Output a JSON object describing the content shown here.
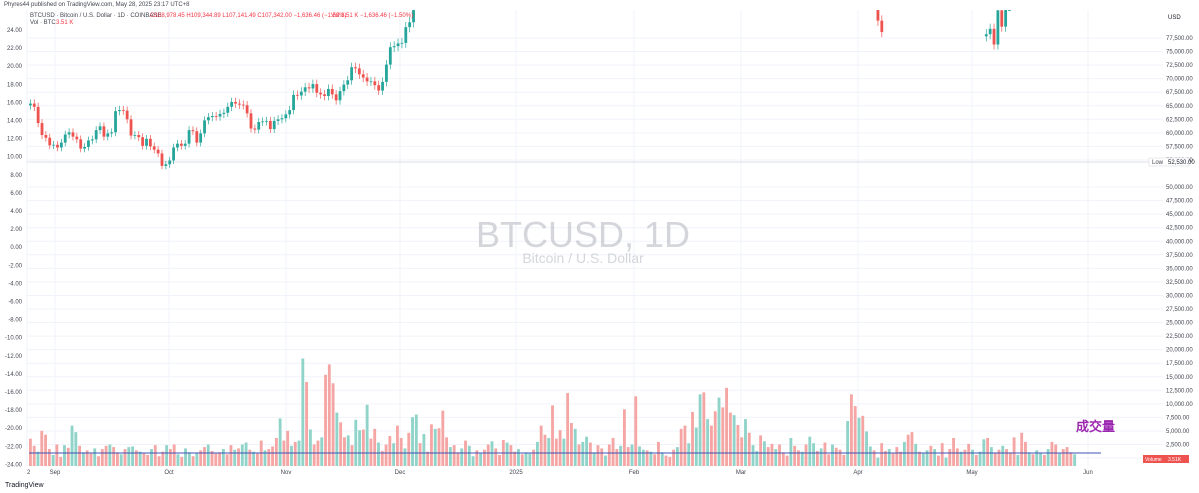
{
  "header": {
    "published": "Phyres44 published on TradingView.com, May 28, 2025 23:17 UTC+8",
    "symbol_line": "BTCUSD · Bitcoin / U.S. Dollar · 1D · COINBASE",
    "ohlc": "O108,978.45 H109,344.89 L107,141.49 C107,342.00 −1,636.46 (−1.50%)",
    "ohlc2": "Vol 3.51 K −1,636.46 (−1.50%)",
    "vol_label": "Vol · BTC",
    "vol_value": "3.51 K"
  },
  "watermark": {
    "symbol": "BTCUSD, 1D",
    "name": "Bitcoin / U.S. Dollar"
  },
  "annotation": "成交量",
  "right_axis": {
    "currency": "USD",
    "low_label": "Low",
    "low_value": "52,530.00",
    "volume_label": "Volume",
    "volume_value": "3.51K",
    "ticks": [
      "77,500.00",
      "75,000.00",
      "72,500.00",
      "70,000.00",
      "67,500.00",
      "65,000.00",
      "62,500.00",
      "60,000.00",
      "57,500.00",
      "55,000.00",
      "50,000.00",
      "47,500.00",
      "45,000.00",
      "42,500.00",
      "40,000.00",
      "37,500.00",
      "35,000.00",
      "32,500.00",
      "30,000.00",
      "27,500.00",
      "25,000.00",
      "22,500.00",
      "20,000.00",
      "17,500.00",
      "15,000.00",
      "12,500.00",
      "10,000.00",
      "7,500.00",
      "5,000.00",
      "2,500.00",
      "0.00"
    ]
  },
  "left_axis": {
    "ticks": [
      "24.00",
      "22.00",
      "20.00",
      "18.00",
      "16.00",
      "14.00",
      "12.00",
      "10.00",
      "8.00",
      "6.00",
      "4.00",
      "2.00",
      "0.00",
      "-2.00",
      "-4.00",
      "-6.00",
      "-8.00",
      "-10.00",
      "-12.00",
      "-14.00",
      "-16.00",
      "-18.00",
      "-20.00",
      "-22.00",
      "-24.00"
    ]
  },
  "x_axis": {
    "labels": [
      "2",
      "Sep",
      "Oct",
      "Nov",
      "Dec",
      "2025",
      "Feb",
      "Mar",
      "Apr",
      "May",
      "Jun"
    ]
  },
  "colors": {
    "up": "#26a69a",
    "down": "#ef5350",
    "up_vol": "#8fd3c9",
    "down_vol": "#f5a5a3",
    "ma_line": "#3f51b5",
    "annotation": "#9c27b0"
  },
  "footer": {
    "brand": "TradingView"
  },
  "chart_data": {
    "type": "candlestick",
    "series": [
      {
        "name": "BTCUSD",
        "note": "Daily candles Aug 2024 – early Nov 2024 and partial Mar/Apr 2025 (rest above visible range)",
        "segments": [
          {
            "from": "2024-08-02",
            "to": "2024-11-09",
            "close": [
              65400,
              64800,
              61800,
              59600,
              59100,
              57700,
              57800,
              57300,
              58200,
              59700,
              60100,
              59300,
              58800,
              57100,
              57400,
              58600,
              58800,
              60500,
              61200,
              59300,
              59900,
              60100,
              64000,
              64200,
              64100,
              62500,
              59500,
              59600,
              59200,
              57600,
              58900,
              57500,
              56900,
              56200,
              53900,
              54200,
              54900,
              57300,
              58000,
              57600,
              58000,
              60500,
              60300,
              58200,
              59900,
              62300,
              62900,
              63100,
              63000,
              63500,
              63700,
              64800,
              65700,
              65400,
              65200,
              65100,
              63600,
              60800,
              60600,
              62000,
              62100,
              62200,
              60700,
              62200,
              62500,
              62700,
              63400,
              64200,
              67000,
              66900,
              67600,
              68400,
              68200,
              69000,
              67400,
              67100,
              66800,
              68100,
              67100,
              66000,
              67700,
              68900,
              69700,
              72100,
              71900,
              70800,
              70200,
              69500,
              69500,
              68800,
              67800,
              69400,
              72600,
              75800,
              76000,
              76500,
              76600,
              79500,
              80400,
              85200
            ]
          },
          {
            "from": "2025-03-01",
            "to": "2025-03-10",
            "close": [
              86000,
              94200,
              86100,
              87200,
              90600,
              89900,
              86800,
              86100,
              80700,
              78600
            ]
          },
          {
            "from": "2025-04-06",
            "to": "2025-04-14",
            "close": [
              78200,
              79200,
              76300,
              82600,
              79600,
              83500,
              85200,
              83800,
              84600
            ]
          }
        ]
      }
    ],
    "volume": {
      "y_range": [
        0,
        20000
      ],
      "ma_level": 1600,
      "values_estimated": [
        4200,
        3100,
        2200,
        5400,
        4800,
        2600,
        1700,
        3300,
        1400,
        3200,
        2800,
        6200,
        5200,
        3100,
        2100,
        2400,
        1900,
        2700,
        1500,
        2600,
        3100,
        3300,
        2900,
        2100,
        1800,
        2600,
        2900,
        3000,
        2400,
        2200,
        1900,
        1700,
        2600,
        3200,
        1500,
        2200,
        3200,
        2600,
        3300,
        1800,
        1400,
        2700,
        2100,
        1500,
        2000,
        2400,
        2900,
        3300,
        2300,
        1900,
        2100,
        2600,
        1800,
        3200,
        2500,
        2700,
        3300,
        3600,
        2500,
        2200,
        1900,
        3900,
        2400,
        2600,
        3000,
        4300,
        7300,
        3900,
        5400,
        3100,
        3700,
        3900,
        16500,
        12900,
        5600,
        3300,
        3900,
        4400,
        14000,
        15600,
        12700,
        8200,
        6700,
        4400,
        4700,
        3200,
        7100,
        5500,
        5600,
        9400,
        4200,
        5700,
        3600,
        2300,
        3300,
        4600,
        3500,
        6200,
        4300,
        2700,
        5100,
        7500,
        7900,
        3500,
        4900,
        2200,
        6400,
        5700,
        5800,
        8500,
        4400,
        2900,
        3200,
        2100,
        2700,
        3900,
        3100,
        1500,
        2400,
        1900,
        2500,
        3300,
        3800,
        2700,
        1700,
        4000,
        3600,
        3200,
        2200,
        2600,
        1800,
        2100,
        1900,
        2500,
        3700,
        6200,
        4800,
        4300,
        9300,
        4200,
        5500,
        4200,
        11200,
        6600,
        5700,
        3300,
        3700,
        4500,
        3600,
        2100,
        3200,
        2700,
        1600,
        3300,
        4300,
        2600,
        3100,
        8700,
        2900,
        3300,
        10700,
        3000,
        2500,
        2400,
        2200,
        1800,
        3700,
        2100,
        1600,
        1400,
        2500,
        2900,
        5700,
        6200,
        3500,
        8300,
        5900,
        11000,
        11300,
        7200,
        6200,
        8400,
        10500,
        9000,
        12000,
        8200,
        7800,
        6300,
        4400,
        7200,
        5100,
        3200,
        2300,
        4700,
        3800,
        2900,
        3400,
        2600,
        3300,
        2100,
        1600,
        4300,
        3100,
        2400,
        2200,
        3300,
        4500,
        3500,
        2300,
        2700,
        3600,
        1800,
        3300,
        2800,
        2500,
        1700,
        6900,
        11000,
        9200,
        7400,
        7700,
        5300,
        3000,
        2400,
        1300,
        3500,
        2300,
        2600,
        1900,
        2900,
        2200,
        3700,
        4800,
        5200,
        3400,
        2200,
        1900,
        2400,
        3100,
        2600,
        1600,
        3500,
        1300,
        2600,
        4300,
        2700,
        2200,
        2500,
        3400,
        2500,
        1700,
        2200,
        4100,
        4300,
        2900,
        2000,
        2500,
        3100,
        2600,
        2100,
        4400,
        1700,
        5100,
        3700,
        2100,
        1800,
        2400,
        2000,
        1700,
        2600,
        3700,
        3300,
        1900,
        2600,
        2900,
        2100,
        1800
      ]
    }
  }
}
